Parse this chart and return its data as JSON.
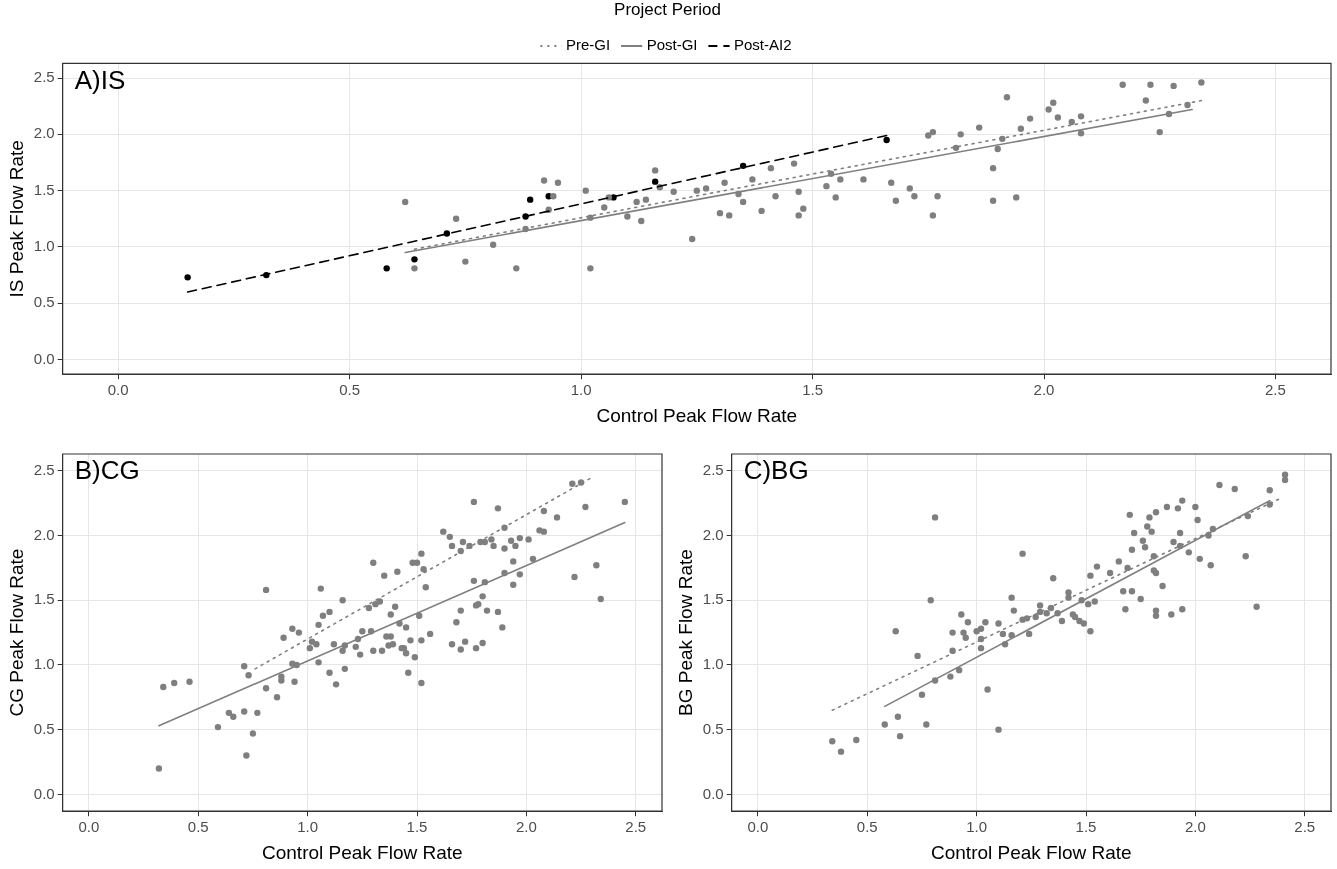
{
  "chart_data": [
    {
      "type": "scatter",
      "title": "A)IS",
      "xlabel": "Control Peak Flow Rate",
      "ylabel": "IS Peak Flow Rate",
      "xlim": [
        -0.12,
        2.62
      ],
      "ylim": [
        -0.13,
        2.63
      ],
      "xticks": [
        {
          "value": 0,
          "label": "0.0"
        },
        0.5,
        {
          "value": 1,
          "label": "1.0"
        },
        1.5,
        {
          "value": 2,
          "label": "2.0"
        },
        2.5
      ],
      "yticks": [
        {
          "value": 0,
          "label": "0.0"
        },
        0.5,
        {
          "value": 1,
          "label": "1.0"
        },
        1.5,
        {
          "value": 2,
          "label": "2.0"
        },
        2.5
      ],
      "grid": true,
      "legend": "top",
      "legend_title": "Project Period",
      "series": [
        {
          "name": "Pre-GI",
          "type": "line",
          "line_style": "dotted",
          "marker": "none",
          "color": "#7f7f7f",
          "x": [
            0.64,
            2.34
          ],
          "values": [
            0.98,
            2.3
          ]
        },
        {
          "name": "Post-GI",
          "type": "line",
          "line_style": "solid",
          "marker": "none",
          "color": "#7f7f7f",
          "x": [
            0.62,
            2.32
          ],
          "values": [
            0.95,
            2.22
          ]
        },
        {
          "name": "Post-AI2",
          "type": "line",
          "line_style": "dashed",
          "marker": "none",
          "color": "#000000",
          "x": [
            0.15,
            1.66
          ],
          "values": [
            0.6,
            1.99
          ]
        },
        {
          "type": "scatter",
          "marker": "circle",
          "color": "#7f7f7f",
          "x": [
            0.62,
            0.64,
            0.73,
            0.75,
            0.81,
            0.86,
            0.88,
            0.92,
            0.93,
            0.94,
            0.95,
            1.01,
            1.02,
            1.02,
            1.05,
            1.06,
            1.1,
            1.12,
            1.13,
            1.14,
            1.16,
            1.17,
            1.2,
            1.24,
            1.25,
            1.27,
            1.3,
            1.31,
            1.32,
            1.34,
            1.35,
            1.37,
            1.39,
            1.41,
            1.42,
            1.46,
            1.47,
            1.47,
            1.48,
            1.53,
            1.54,
            1.55,
            1.56,
            1.61,
            1.67,
            1.68,
            1.71,
            1.72,
            1.75,
            1.76,
            1.76,
            1.77,
            1.81,
            1.82,
            1.86,
            1.89,
            1.89,
            1.9,
            1.91,
            1.92,
            1.94,
            1.95,
            1.97,
            2.01,
            2.02,
            2.03,
            2.06,
            2.08,
            2.08,
            2.17,
            2.22,
            2.23,
            2.25,
            2.27,
            2.28,
            2.31,
            2.34
          ],
          "values": [
            1.4,
            0.81,
            1.25,
            0.87,
            1.02,
            0.81,
            1.16,
            1.59,
            1.33,
            1.45,
            1.57,
            1.5,
            0.81,
            1.26,
            1.35,
            1.44,
            1.27,
            1.4,
            1.23,
            1.42,
            1.68,
            1.53,
            1.49,
            1.07,
            1.5,
            1.52,
            1.3,
            1.57,
            1.28,
            1.47,
            1.4,
            1.6,
            1.32,
            1.7,
            1.45,
            1.74,
            1.28,
            1.49,
            1.34,
            1.54,
            1.65,
            1.44,
            1.6,
            1.6,
            1.57,
            1.41,
            1.52,
            1.45,
            1.99,
            1.28,
            2.02,
            1.45,
            1.88,
            2.0,
            2.06,
            1.41,
            1.7,
            1.87,
            1.96,
            2.33,
            1.44,
            2.05,
            2.14,
            2.22,
            2.28,
            2.15,
            2.11,
            2.01,
            2.16,
            2.44,
            2.3,
            2.44,
            2.02,
            2.18,
            2.43,
            2.26,
            2.46
          ]
        },
        {
          "type": "scatter",
          "marker": "circle",
          "color": "#000000",
          "x": [
            0.15,
            0.32,
            0.58,
            0.64,
            0.71,
            0.88,
            0.89,
            0.93,
            1.07,
            1.16,
            1.35,
            1.66
          ],
          "values": [
            0.73,
            0.75,
            0.81,
            0.89,
            1.12,
            1.27,
            1.42,
            1.45,
            1.44,
            1.58,
            1.72,
            1.95
          ]
        }
      ]
    },
    {
      "type": "scatter",
      "title": "B)CG",
      "xlabel": "Control Peak Flow Rate",
      "ylabel": "CG Peak Flow Rate",
      "xlim": [
        -0.12,
        2.62
      ],
      "ylim": [
        -0.13,
        2.63
      ],
      "xticks": [
        {
          "value": 0,
          "label": "0.0"
        },
        0.5,
        {
          "value": 1,
          "label": "1.0"
        },
        1.5,
        {
          "value": 2,
          "label": "2.0"
        },
        2.5
      ],
      "yticks": [
        {
          "value": 0,
          "label": "0.0"
        },
        0.5,
        {
          "value": 1,
          "label": "1.0"
        },
        1.5,
        {
          "value": 2,
          "label": "2.0"
        },
        2.5
      ],
      "grid": true,
      "series": [
        {
          "type": "line",
          "line_style": "dotted",
          "marker": "none",
          "color": "#7f7f7f",
          "x": [
            0.76,
            2.29
          ],
          "values": [
            0.97,
            2.44
          ]
        },
        {
          "type": "line",
          "line_style": "solid",
          "marker": "none",
          "color": "#7f7f7f",
          "x": [
            0.32,
            2.45
          ],
          "values": [
            0.53,
            2.1
          ]
        },
        {
          "type": "scatter",
          "marker": "circle",
          "color": "#7f7f7f",
          "x": [
            0.32,
            0.34,
            0.39,
            0.46,
            0.59,
            0.64,
            0.66,
            0.71,
            0.71,
            0.72,
            0.73,
            0.75,
            0.77,
            0.81,
            0.81,
            0.86,
            0.88,
            0.88,
            0.89,
            0.93,
            0.93,
            0.94,
            0.95,
            0.96,
            1.01,
            1.02,
            1.04,
            1.05,
            1.05,
            1.06,
            1.07,
            1.1,
            1.1,
            1.12,
            1.13,
            1.16,
            1.16,
            1.17,
            1.17,
            1.22,
            1.23,
            1.24,
            1.25,
            1.28,
            1.29,
            1.3,
            1.3,
            1.31,
            1.33,
            1.34,
            1.35,
            1.36,
            1.37,
            1.38,
            1.38,
            1.39,
            1.4,
            1.41,
            1.42,
            1.43,
            1.44,
            1.45,
            1.45,
            1.46,
            1.47,
            1.48,
            1.49,
            1.5,
            1.51,
            1.52,
            1.52,
            1.52,
            1.53,
            1.54,
            1.56,
            1.62,
            1.65,
            1.66,
            1.66,
            1.68,
            1.7,
            1.7,
            1.7,
            1.71,
            1.72,
            1.74,
            1.76,
            1.76,
            1.77,
            1.77,
            1.78,
            1.79,
            1.8,
            1.8,
            1.81,
            1.81,
            1.82,
            1.84,
            1.85,
            1.87,
            1.87,
            1.89,
            1.9,
            1.9,
            1.9,
            1.93,
            1.94,
            1.94,
            1.95,
            1.97,
            1.97,
            2.01,
            2.03,
            2.06,
            2.08,
            2.08,
            2.14,
            2.21,
            2.22,
            2.25,
            2.27,
            2.32,
            2.34,
            2.45
          ],
          "values": [
            0.2,
            0.83,
            0.86,
            0.87,
            0.52,
            0.63,
            0.6,
            0.64,
            0.99,
            0.3,
            0.92,
            0.47,
            0.63,
            1.58,
            0.82,
            0.75,
            0.91,
            0.88,
            1.21,
            1.28,
            1.01,
            0.87,
            1.0,
            1.25,
            1.13,
            1.18,
            1.16,
            1.31,
            1.02,
            1.59,
            1.38,
            1.41,
            0.94,
            1.16,
            0.85,
            1.5,
            1.11,
            0.97,
            1.15,
            1.14,
            1.2,
            1.08,
            1.26,
            1.44,
            1.26,
            1.11,
            1.79,
            1.47,
            1.49,
            1.11,
            1.69,
            1.22,
            1.15,
            1.39,
            1.22,
            1.16,
            1.45,
            1.72,
            1.32,
            1.13,
            1.13,
            1.29,
            1.09,
            0.94,
            1.19,
            1.79,
            1.06,
            1.79,
            1.38,
            0.86,
            1.86,
            1.19,
            1.74,
            1.6,
            1.24,
            2.03,
            1.99,
            1.92,
            1.16,
            1.33,
            1.88,
            1.42,
            1.12,
            1.95,
            1.18,
            1.92,
            1.65,
            2.26,
            1.13,
            1.46,
            1.47,
            1.95,
            1.53,
            1.17,
            1.95,
            1.64,
            1.42,
            1.97,
            1.92,
            2.21,
            1.41,
            1.29,
            1.9,
            2.06,
            1.71,
            1.96,
            1.62,
            1.8,
            1.92,
            1.7,
            1.98,
            1.97,
            1.82,
            2.04,
            2.19,
            2.03,
            2.14,
            2.4,
            1.68,
            2.41,
            2.22,
            1.77,
            1.51,
            2.26
          ]
        }
      ]
    },
    {
      "type": "scatter",
      "title": "C)BG",
      "xlabel": "Control Peak Flow Rate",
      "ylabel": "BG Peak Flow Rate",
      "xlim": [
        -0.12,
        2.62
      ],
      "ylim": [
        -0.13,
        2.63
      ],
      "xticks": [
        {
          "value": 0,
          "label": "0.0"
        },
        0.5,
        {
          "value": 1,
          "label": "1.0"
        },
        1.5,
        {
          "value": 2,
          "label": "2.0"
        },
        2.5
      ],
      "yticks": [
        {
          "value": 0,
          "label": "0.0"
        },
        0.5,
        {
          "value": 1,
          "label": "1.0"
        },
        1.5,
        {
          "value": 2,
          "label": "2.0"
        },
        2.5
      ],
      "grid": true,
      "series": [
        {
          "type": "line",
          "line_style": "dotted",
          "marker": "none",
          "color": "#7f7f7f",
          "x": [
            0.34,
            2.38
          ],
          "values": [
            0.65,
            2.28
          ]
        },
        {
          "type": "line",
          "line_style": "solid",
          "marker": "none",
          "color": "#7f7f7f",
          "x": [
            0.58,
            2.34
          ],
          "values": [
            0.68,
            2.27
          ]
        },
        {
          "type": "scatter",
          "marker": "circle",
          "color": "#7f7f7f",
          "x": [
            0.34,
            0.38,
            0.45,
            0.58,
            0.63,
            0.64,
            0.65,
            0.73,
            0.75,
            0.77,
            0.79,
            0.81,
            0.81,
            0.88,
            0.89,
            0.89,
            0.92,
            0.93,
            0.94,
            0.95,
            0.96,
            1.0,
            1.02,
            1.02,
            1.02,
            1.04,
            1.05,
            1.1,
            1.1,
            1.12,
            1.13,
            1.16,
            1.16,
            1.17,
            1.21,
            1.21,
            1.23,
            1.24,
            1.27,
            1.29,
            1.29,
            1.32,
            1.34,
            1.35,
            1.37,
            1.39,
            1.42,
            1.42,
            1.44,
            1.45,
            1.47,
            1.49,
            1.48,
            1.51,
            1.52,
            1.52,
            1.54,
            1.55,
            1.61,
            1.65,
            1.67,
            1.68,
            1.69,
            1.7,
            1.71,
            1.71,
            1.72,
            1.75,
            1.76,
            1.77,
            1.78,
            1.79,
            1.8,
            1.81,
            1.81,
            1.82,
            1.82,
            1.82,
            1.82,
            1.85,
            1.87,
            1.89,
            1.9,
            1.92,
            1.93,
            1.93,
            1.94,
            1.94,
            1.97,
            2.0,
            2.01,
            2.02,
            2.06,
            2.07,
            2.08,
            2.11,
            2.18,
            2.23,
            2.24,
            2.28,
            2.34,
            2.34,
            2.41,
            2.41
          ],
          "values": [
            0.41,
            0.33,
            0.42,
            0.54,
            1.26,
            0.6,
            0.45,
            1.07,
            0.77,
            0.54,
            1.5,
            2.14,
            0.88,
            0.91,
            1.11,
            1.25,
            0.96,
            1.39,
            1.25,
            1.21,
            1.33,
            1.26,
            1.28,
            1.2,
            1.13,
            1.33,
            0.81,
            1.32,
            0.5,
            1.24,
            1.16,
            1.52,
            1.23,
            1.42,
            1.86,
            1.35,
            1.36,
            1.24,
            1.37,
            1.41,
            1.46,
            1.4,
            1.44,
            1.67,
            1.4,
            1.34,
            1.56,
            1.52,
            1.39,
            1.37,
            1.34,
            1.32,
            1.5,
            1.47,
            1.26,
            1.69,
            1.49,
            1.76,
            1.71,
            1.8,
            1.57,
            1.43,
            1.75,
            2.16,
            1.89,
            1.57,
            2.02,
            1.51,
            1.96,
            1.91,
            2.07,
            2.14,
            2.03,
            1.84,
            1.73,
            1.42,
            1.38,
            2.18,
            1.71,
            1.61,
            2.22,
            1.39,
            1.95,
            2.21,
            2.02,
            1.92,
            2.27,
            1.43,
            1.87,
            2.22,
            2.12,
            1.82,
            2.0,
            1.77,
            2.05,
            2.39,
            2.36,
            1.84,
            2.15,
            1.45,
            2.35,
            2.24,
            2.47,
            2.43
          ]
        }
      ]
    }
  ]
}
